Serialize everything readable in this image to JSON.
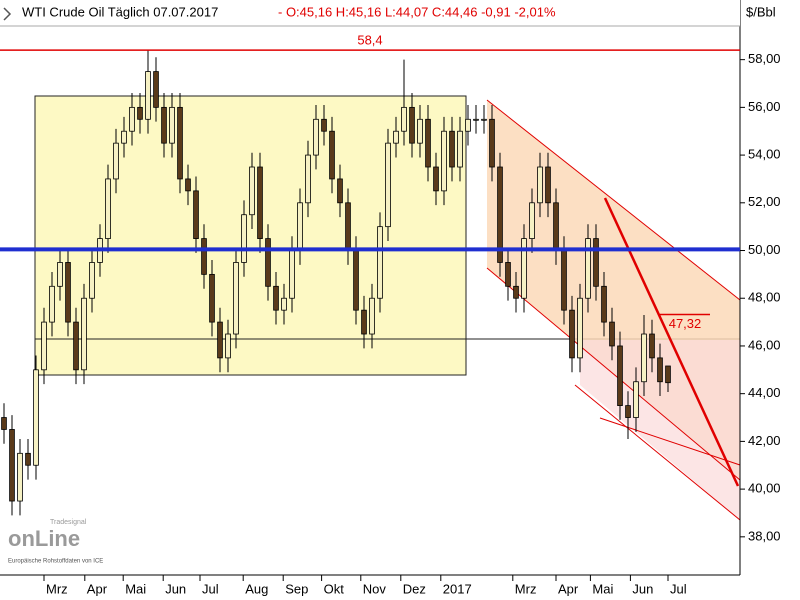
{
  "chart_data": {
    "type": "candlestick",
    "title": "WTI Crude Oil Täglich  07.07.2017",
    "subtitle": "- O:45,16 H:45,16 L:44,07 C:44,46 -0,91 -2,01%",
    "y_label": "$/Bbl",
    "logo": "onLine",
    "logo_tag": "Tradesignal",
    "source": "Europäische Rohstoffdaten von ICE",
    "up_color": "#f6f1c4",
    "down_color": "#5a3a1a",
    "open": [
      43,
      42.5,
      39.5,
      41.5,
      41,
      45,
      47,
      48.5,
      49.5,
      47,
      45,
      48,
      49.5,
      50.5,
      53,
      54.5,
      55,
      56,
      55.5,
      57.5,
      56,
      54.5,
      56,
      53,
      52.5,
      50.5,
      49,
      47,
      45.5,
      46.5,
      49.5,
      51.5,
      53.5,
      50.5,
      48.5,
      47.5,
      48,
      50,
      52,
      54,
      55.5,
      55,
      53,
      52,
      50,
      47.5,
      46.5,
      48,
      51,
      54.5,
      55,
      56,
      54.5,
      55.5,
      53.5,
      52.5,
      55,
      53.5,
      55,
      55.5,
      55.5,
      55.5,
      53.5,
      49.5,
      48.5,
      48,
      50.5,
      52,
      53.5,
      52,
      50,
      47.5,
      45.5,
      48,
      50.5,
      48.5,
      47,
      46,
      43.5,
      43,
      44.5,
      46.5,
      45.5,
      45.16
    ],
    "high": [
      43.6,
      43.1,
      42.1,
      42.1,
      45.6,
      47.6,
      49.1,
      50.1,
      50.1,
      47.6,
      48.6,
      50.1,
      51.1,
      53.6,
      55.1,
      55.6,
      56.6,
      56.6,
      58.4,
      58.1,
      56.6,
      56.6,
      56.6,
      53.6,
      53.1,
      51.1,
      49.6,
      47.6,
      47.1,
      50.1,
      52.1,
      54.1,
      54.1,
      51.1,
      49.1,
      48.6,
      50.6,
      52.6,
      54.6,
      56.1,
      56.1,
      55.6,
      53.6,
      52.6,
      50.6,
      48.1,
      48.6,
      51.6,
      55.1,
      55.6,
      58,
      56.6,
      56.1,
      56.1,
      54.1,
      55.6,
      55.6,
      55.6,
      56.1,
      56.1,
      56.1,
      56.1,
      54.1,
      50.1,
      49.1,
      51.1,
      52.6,
      54.1,
      54.1,
      52.6,
      50.6,
      48.1,
      48.6,
      51.1,
      51.1,
      49.1,
      47.6,
      46.6,
      44.1,
      45.1,
      47.3,
      47.1,
      46.1,
      45.16
    ],
    "low": [
      41.9,
      38.9,
      38.9,
      40.4,
      40.4,
      44.4,
      46.4,
      47.9,
      46.4,
      44.4,
      44.4,
      47.4,
      48.9,
      49.9,
      52.4,
      53.9,
      54.4,
      54.9,
      54.9,
      55.4,
      53.9,
      53.9,
      52.4,
      51.9,
      49.9,
      48.4,
      46.4,
      44.9,
      44.9,
      45.9,
      48.9,
      50.9,
      49.9,
      47.9,
      46.9,
      46.9,
      47.4,
      49.4,
      51.4,
      53.4,
      54.4,
      52.4,
      51.4,
      49.4,
      46.9,
      45.9,
      45.9,
      47.4,
      50.4,
      53.9,
      54.4,
      53.9,
      53.9,
      52.9,
      51.9,
      51.9,
      52.9,
      52.9,
      54.4,
      54.9,
      54.9,
      52.9,
      48.9,
      47.9,
      47.4,
      47.4,
      49.9,
      51.4,
      51.4,
      49.4,
      46.9,
      44.9,
      44.9,
      47.4,
      47.9,
      46.4,
      45.4,
      42.9,
      42.1,
      42.4,
      43.9,
      44.9,
      43.9,
      44.07
    ],
    "close": [
      42.5,
      39.5,
      41.5,
      41,
      45,
      47,
      48.5,
      49.5,
      47,
      45,
      48,
      49.5,
      50.5,
      53,
      54.5,
      55,
      56,
      55.5,
      57.5,
      56,
      54.5,
      56,
      53,
      52.5,
      50.5,
      49,
      47,
      45.5,
      46.5,
      49.5,
      51.5,
      53.5,
      50.5,
      48.5,
      47.5,
      48,
      50,
      52,
      54,
      55.5,
      55,
      53,
      52,
      50,
      47.5,
      46.5,
      48,
      51,
      54.5,
      55,
      56,
      54.5,
      55.5,
      53.5,
      52.5,
      55,
      53.5,
      55,
      55.5,
      55.5,
      55.5,
      53.5,
      49.5,
      48.5,
      48,
      50.5,
      52,
      53.5,
      52,
      50,
      47.5,
      45.5,
      48,
      50.5,
      48.5,
      47,
      46,
      43.5,
      43,
      44.5,
      46.5,
      45.5,
      44.5,
      44.46
    ],
    "xlim": [
      0,
      92.5
    ],
    "xticks": [
      {
        "value": 5.5,
        "label": "Mrz"
      },
      {
        "value": 10.6,
        "label": "Apr"
      },
      {
        "value": 15.4,
        "label": "Mai"
      },
      {
        "value": 20.4,
        "label": "Jun"
      },
      {
        "value": 25,
        "label": "Jul"
      },
      {
        "value": 30.4,
        "label": "Aug"
      },
      {
        "value": 35.4,
        "label": "Sep"
      },
      {
        "value": 40.2,
        "label": "Okt"
      },
      {
        "value": 45.1,
        "label": "Nov"
      },
      {
        "value": 50.1,
        "label": "Dez"
      },
      {
        "value": 55.1,
        "label": "2017"
      },
      {
        "value": 64.1,
        "label": "Mrz"
      },
      {
        "value": 69.5,
        "label": "Apr"
      },
      {
        "value": 73.8,
        "label": "Mai"
      },
      {
        "value": 78.8,
        "label": "Jun"
      },
      {
        "value": 83.5,
        "label": "Jul"
      }
    ],
    "ylim": [
      36.4,
      60.5
    ],
    "yticks": [
      {
        "value": 38,
        "label": "38,00"
      },
      {
        "value": 40,
        "label": "40,00"
      },
      {
        "value": 42,
        "label": "42,00"
      },
      {
        "value": 44,
        "label": "44,00"
      },
      {
        "value": 46,
        "label": "46,00"
      },
      {
        "value": 48,
        "label": "48,00"
      },
      {
        "value": 50,
        "label": "50,00"
      },
      {
        "value": 52,
        "label": "52,00"
      },
      {
        "value": 54,
        "label": "54,00"
      },
      {
        "value": 56,
        "label": "56,00"
      },
      {
        "value": 58,
        "label": "58,00"
      }
    ],
    "hlines": [
      {
        "value": 58.4,
        "label": "58,4",
        "color": "#e00000"
      },
      {
        "value": 50.05,
        "color": "#1f2fd0"
      },
      {
        "value": 47.32,
        "label": "47,32",
        "color": "#e00000"
      }
    ]
  }
}
